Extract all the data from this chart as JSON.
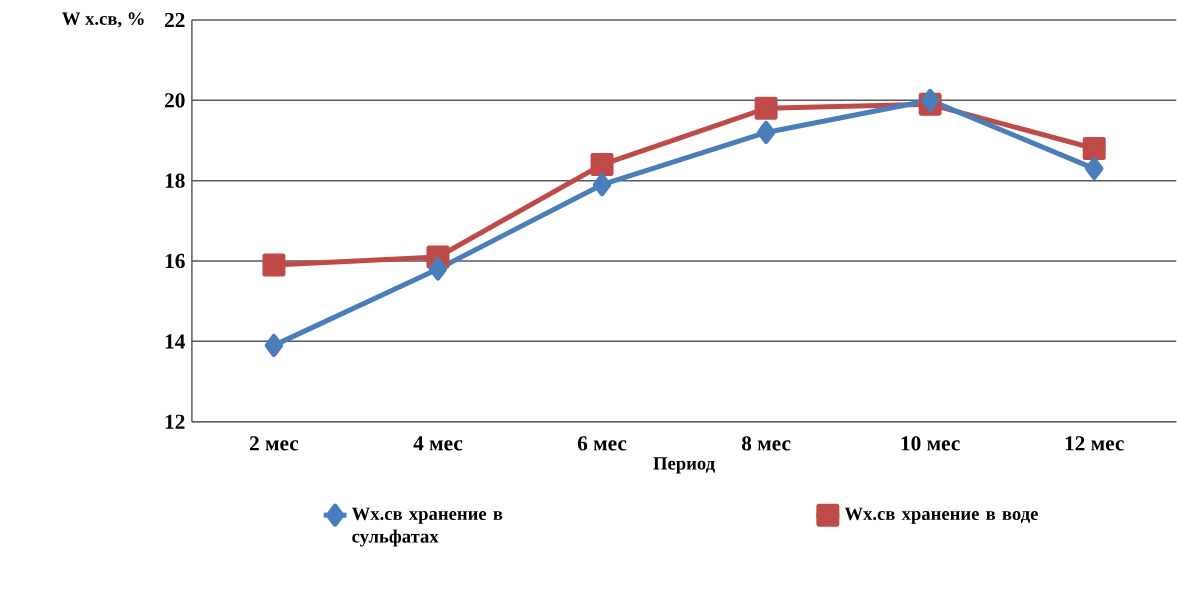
{
  "chart_data": {
    "type": "line",
    "xlabel": "Период",
    "ylabel": "W х.св, %",
    "categories": [
      "2 мес",
      "4 мес",
      "6 мес",
      "8 мес",
      "10 мес",
      "12 мес"
    ],
    "series": [
      {
        "name": "Wx.св хранение в сульфатах",
        "color": "#4a7ebb",
        "marker": "diamond",
        "values": [
          13.9,
          15.8,
          17.9,
          19.2,
          20.0,
          18.3
        ]
      },
      {
        "name": "Wx.св хранение в воде",
        "color": "#be4b48",
        "marker": "square",
        "values": [
          15.9,
          16.1,
          18.4,
          19.8,
          19.9,
          18.8
        ]
      }
    ],
    "ylim": [
      12,
      22
    ],
    "yticks": [
      12,
      14,
      16,
      18,
      20,
      22
    ],
    "grid": "y",
    "legend": "bottom",
    "line_style": "solid"
  }
}
